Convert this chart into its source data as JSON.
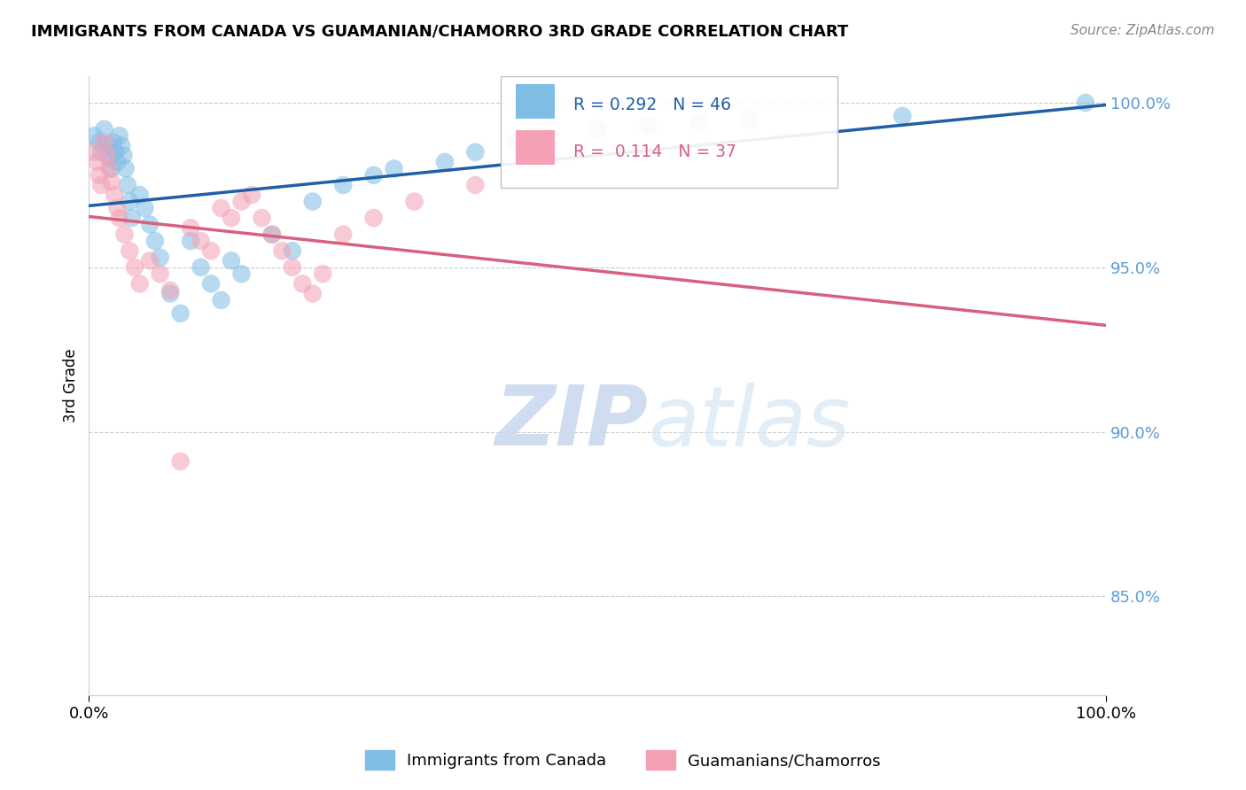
{
  "title": "IMMIGRANTS FROM CANADA VS GUAMANIAN/CHAMORRO 3RD GRADE CORRELATION CHART",
  "source": "Source: ZipAtlas.com",
  "ylabel": "3rd Grade",
  "xlim": [
    0.0,
    1.0
  ],
  "ylim": [
    0.82,
    1.008
  ],
  "ytick_values": [
    0.85,
    0.9,
    0.95,
    1.0
  ],
  "legend_label1": "Immigrants from Canada",
  "legend_label2": "Guamanians/Chamorros",
  "R1": 0.292,
  "N1": 46,
  "R2": 0.114,
  "N2": 37,
  "color_blue": "#7fbde4",
  "color_pink": "#f4a0b5",
  "line_color_blue": "#1f5fa6",
  "line_color_pink": "#d95f7f",
  "watermark_zip": "ZIP",
  "watermark_atlas": "atlas",
  "blue_x": [
    0.005,
    0.01,
    0.012,
    0.015,
    0.018,
    0.02,
    0.022,
    0.024,
    0.026,
    0.028,
    0.03,
    0.032,
    0.034,
    0.036,
    0.038,
    0.04,
    0.042,
    0.05,
    0.055,
    0.06,
    0.065,
    0.07,
    0.08,
    0.09,
    0.1,
    0.11,
    0.12,
    0.13,
    0.14,
    0.15,
    0.18,
    0.2,
    0.22,
    0.25,
    0.28,
    0.3,
    0.35,
    0.38,
    0.42,
    0.45,
    0.5,
    0.55,
    0.6,
    0.65,
    0.8,
    0.98
  ],
  "blue_y": [
    0.99,
    0.988,
    0.985,
    0.992,
    0.987,
    0.983,
    0.98,
    0.988,
    0.985,
    0.982,
    0.99,
    0.987,
    0.984,
    0.98,
    0.975,
    0.97,
    0.965,
    0.972,
    0.968,
    0.963,
    0.958,
    0.953,
    0.942,
    0.936,
    0.958,
    0.95,
    0.945,
    0.94,
    0.952,
    0.948,
    0.96,
    0.955,
    0.97,
    0.975,
    0.978,
    0.98,
    0.982,
    0.985,
    0.988,
    0.99,
    0.992,
    0.993,
    0.994,
    0.995,
    0.996,
    1.0
  ],
  "pink_x": [
    0.005,
    0.008,
    0.01,
    0.012,
    0.015,
    0.018,
    0.02,
    0.022,
    0.025,
    0.028,
    0.03,
    0.035,
    0.04,
    0.045,
    0.05,
    0.06,
    0.07,
    0.08,
    0.09,
    0.1,
    0.11,
    0.12,
    0.13,
    0.14,
    0.15,
    0.16,
    0.17,
    0.18,
    0.19,
    0.2,
    0.21,
    0.22,
    0.23,
    0.25,
    0.28,
    0.32,
    0.38
  ],
  "pink_y": [
    0.985,
    0.982,
    0.978,
    0.975,
    0.988,
    0.984,
    0.98,
    0.976,
    0.972,
    0.968,
    0.965,
    0.96,
    0.955,
    0.95,
    0.945,
    0.952,
    0.948,
    0.943,
    0.891,
    0.962,
    0.958,
    0.955,
    0.968,
    0.965,
    0.97,
    0.972,
    0.965,
    0.96,
    0.955,
    0.95,
    0.945,
    0.942,
    0.948,
    0.96,
    0.965,
    0.97,
    0.975
  ]
}
